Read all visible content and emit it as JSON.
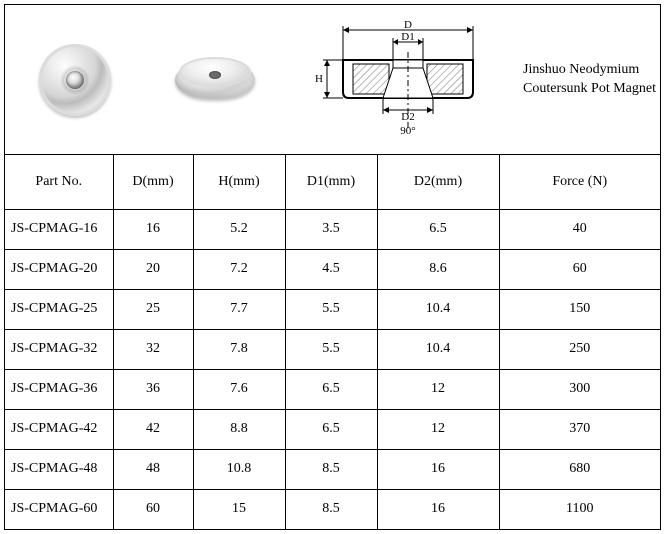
{
  "product": {
    "title_line1": "Jinshuo Neodymium",
    "title_line2": "Coutersunk Pot Magnet"
  },
  "diagram": {
    "labels": {
      "D": "D",
      "D1": "D1",
      "D2": "D2",
      "H": "H",
      "angle": "90°"
    },
    "stroke": "#000000",
    "hatch": "#888888",
    "bg": "#ffffff",
    "font_size": 11
  },
  "table": {
    "columns": [
      {
        "key": "part",
        "label": "Part No."
      },
      {
        "key": "d",
        "label": "D(mm)"
      },
      {
        "key": "h",
        "label": "H(mm)"
      },
      {
        "key": "d1",
        "label": "D1(mm)"
      },
      {
        "key": "d2",
        "label": "D2(mm)"
      },
      {
        "key": "f",
        "label": "Force (N)"
      }
    ],
    "rows": [
      {
        "part": "JS-CPMAG-16",
        "d": "16",
        "h": "5.2",
        "d1": "3.5",
        "d2": "6.5",
        "f": "40"
      },
      {
        "part": "JS-CPMAG-20",
        "d": "20",
        "h": "7.2",
        "d1": "4.5",
        "d2": "8.6",
        "f": "60"
      },
      {
        "part": "JS-CPMAG-25",
        "d": "25",
        "h": "7.7",
        "d1": "5.5",
        "d2": "10.4",
        "f": "150"
      },
      {
        "part": "JS-CPMAG-32",
        "d": "32",
        "h": "7.8",
        "d1": "5.5",
        "d2": "10.4",
        "f": "250"
      },
      {
        "part": "JS-CPMAG-36",
        "d": "36",
        "h": "7.6",
        "d1": "6.5",
        "d2": "12",
        "f": "300"
      },
      {
        "part": "JS-CPMAG-42",
        "d": "42",
        "h": "8.8",
        "d1": "6.5",
        "d2": "12",
        "f": "370"
      },
      {
        "part": "JS-CPMAG-48",
        "d": "48",
        "h": "10.8",
        "d1": "8.5",
        "d2": "16",
        "f": "680"
      },
      {
        "part": "JS-CPMAG-60",
        "d": "60",
        "h": "15",
        "d1": "8.5",
        "d2": "16",
        "f": "1100"
      }
    ]
  }
}
